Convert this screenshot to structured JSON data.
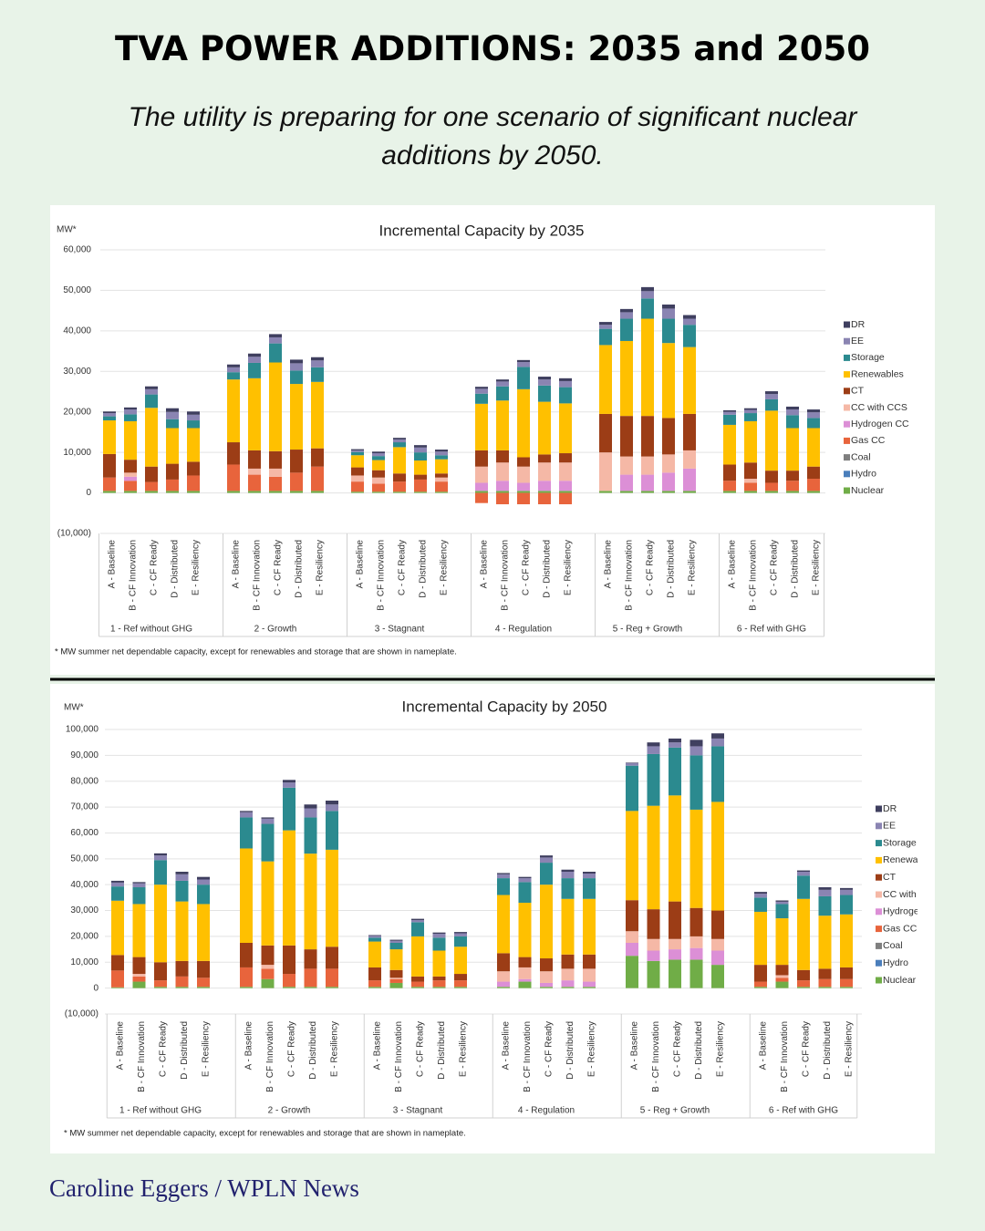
{
  "header": {
    "title": "TVA POWER ADDITIONS: 2035 and 2050",
    "subtitle": "The utility is preparing for one scenario of significant nuclear additions by 2050."
  },
  "credit": "Caroline Eggers / WPLN News",
  "chart_data": [
    {
      "type": "stacked-bar",
      "title": "Incremental Capacity by 2035",
      "y_label": "MW*",
      "note": "* MW summer net dependable capacity, except for renewables and storage that are shown in nameplate.",
      "categories": [
        "A - Baseline",
        "B - CF Innovation",
        "C - CF Ready",
        "D - Distributed",
        "E - Resiliency",
        "A - Baseline",
        "B - CF Innovation",
        "C - CF Ready",
        "D - Distributed",
        "E - Resiliency",
        "A - Baseline",
        "B - CF Innovation",
        "C - CF Ready",
        "D - Distributed",
        "E - Resiliency",
        "A - Baseline",
        "B - CF Innovation",
        "C - CF Ready",
        "D - Distributed",
        "E - Resiliency",
        "A - Baseline",
        "B - CF Innovation",
        "C - CF Ready",
        "D - Distributed",
        "E - Resiliency",
        "A - Baseline",
        "B - CF Innovation",
        "C - CF Ready",
        "D - Distributed",
        "E - Resiliency"
      ],
      "groups": [
        "1 - Ref without GHG",
        "2 - Growth",
        "3 - Stagnant",
        "4 - Regulation",
        "5 - Reg + Growth",
        "6 - Ref with GHG"
      ],
      "ylim": [
        -10000,
        60000
      ],
      "yticks": [
        {
          "value": -10000,
          "label": "(10,000)"
        },
        0,
        {
          "value": 10000,
          "label": "10,000"
        },
        {
          "value": 20000,
          "label": "20,000"
        },
        {
          "value": 30000,
          "label": "30,000"
        },
        {
          "value": 40000,
          "label": "40,000"
        },
        {
          "value": 50000,
          "label": "50,000"
        },
        {
          "value": 60000,
          "label": "60,000"
        }
      ],
      "grid": true,
      "legend": "right",
      "series": [
        {
          "name": "Nuclear",
          "color": "#70ad47",
          "values": [
            500,
            500,
            500,
            500,
            500,
            500,
            500,
            500,
            500,
            500,
            300,
            300,
            300,
            300,
            300,
            500,
            500,
            500,
            500,
            500,
            500,
            500,
            500,
            500,
            500,
            500,
            500,
            500,
            500,
            500
          ]
        },
        {
          "name": "Hydro",
          "color": "#4a7ebb",
          "values": [
            0,
            0,
            0,
            0,
            0,
            0,
            0,
            0,
            0,
            0,
            0,
            0,
            0,
            0,
            0,
            0,
            0,
            0,
            0,
            0,
            0,
            0,
            0,
            0,
            0,
            0,
            0,
            0,
            0,
            0
          ]
        },
        {
          "name": "Coal",
          "color": "#7f7f7f",
          "values": [
            0,
            0,
            0,
            0,
            0,
            0,
            0,
            0,
            0,
            0,
            0,
            0,
            0,
            0,
            0,
            0,
            0,
            0,
            0,
            0,
            0,
            0,
            0,
            0,
            0,
            0,
            0,
            0,
            0,
            0
          ]
        },
        {
          "name": "Gas CC",
          "color": "#e8643c",
          "values": [
            3300,
            2500,
            2200,
            2800,
            3800,
            6500,
            4000,
            3500,
            4500,
            6000,
            2500,
            2000,
            2500,
            3000,
            2500,
            -2500,
            -2800,
            -2800,
            -2800,
            -2800,
            0,
            0,
            0,
            0,
            0,
            2500,
            2000,
            2000,
            2500,
            3000
          ]
        },
        {
          "name": "Hydrogen CC",
          "color": "#dc8fd6",
          "values": [
            0,
            1000,
            0,
            0,
            0,
            0,
            0,
            0,
            0,
            0,
            0,
            0,
            0,
            0,
            0,
            2000,
            2500,
            2000,
            2500,
            2500,
            0,
            4000,
            4000,
            4500,
            5500,
            0,
            0,
            0,
            0,
            0
          ]
        },
        {
          "name": "CC with CCS",
          "color": "#f5b8a6",
          "values": [
            0,
            1000,
            0,
            0,
            0,
            0,
            1500,
            2000,
            0,
            0,
            1500,
            1500,
            0,
            0,
            1000,
            4000,
            4500,
            4000,
            4500,
            4500,
            9500,
            4500,
            4500,
            4500,
            4500,
            0,
            1000,
            0,
            0,
            0
          ]
        },
        {
          "name": "CT",
          "color": "#9c3d16",
          "values": [
            5800,
            3200,
            3800,
            3900,
            3400,
            5500,
            4500,
            4300,
            5700,
            4500,
            2000,
            1800,
            2000,
            1200,
            1000,
            4000,
            3000,
            2300,
            2000,
            2300,
            9500,
            10000,
            10000,
            9000,
            9000,
            4000,
            4000,
            3000,
            2500,
            3000
          ]
        },
        {
          "name": "Renewables",
          "color": "#ffc000",
          "values": [
            8300,
            9500,
            14500,
            8800,
            8300,
            15500,
            17800,
            21900,
            16200,
            16400,
            3000,
            2500,
            6500,
            3500,
            3500,
            11500,
            12300,
            16800,
            13000,
            12300,
            17000,
            18500,
            24000,
            18500,
            16500,
            9800,
            10200,
            14800,
            10500,
            9500
          ]
        },
        {
          "name": "Storage",
          "color": "#2b8a8f",
          "values": [
            1000,
            1700,
            3300,
            2200,
            1900,
            1800,
            3800,
            4700,
            3300,
            3600,
            800,
            1000,
            1200,
            2000,
            1000,
            2500,
            3500,
            5500,
            4000,
            4000,
            4000,
            5500,
            5000,
            6000,
            5500,
            2500,
            2000,
            2800,
            3200,
            2500
          ]
        },
        {
          "name": "EE",
          "color": "#8a84b2",
          "values": [
            800,
            1200,
            1300,
            1800,
            1400,
            1200,
            1500,
            1500,
            1800,
            1700,
            400,
            700,
            700,
            1200,
            900,
            1200,
            1200,
            1200,
            1500,
            1500,
            1000,
            1600,
            1800,
            2500,
            1500,
            700,
            800,
            1300,
            1400,
            1400
          ]
        },
        {
          "name": "DR",
          "color": "#3f3f5f",
          "values": [
            400,
            500,
            700,
            900,
            800,
            700,
            800,
            800,
            900,
            800,
            300,
            400,
            400,
            600,
            500,
            500,
            500,
            500,
            700,
            700,
            700,
            800,
            1000,
            1000,
            900,
            400,
            400,
            700,
            700,
            700
          ]
        }
      ]
    },
    {
      "type": "stacked-bar",
      "title": "Incremental Capacity by 2050",
      "y_label": "MW*",
      "note": "* MW summer net dependable capacity, except for renewables and storage that are shown in nameplate.",
      "categories": [
        "A - Baseline",
        "B - CF Innovation",
        "C - CF Ready",
        "D - Distributed",
        "E - Resiliency",
        "A - Baseline",
        "B - CF Innovation",
        "C - CF Ready",
        "D - Distributed",
        "E - Resiliency",
        "A - Baseline",
        "B - CF Innovation",
        "C - CF Ready",
        "D - Distributed",
        "E - Resiliency",
        "A - Baseline",
        "B - CF Innovation",
        "C - CF Ready",
        "D - Distributed",
        "E - Resiliency",
        "A - Baseline",
        "B - CF Innovation",
        "C - CF Ready",
        "D - Distributed",
        "E - Resiliency",
        "A - Baseline",
        "B - CF Innovation",
        "C - CF Ready",
        "D - Distributed",
        "E - Resiliency"
      ],
      "groups": [
        "1 - Ref without GHG",
        "2 - Growth",
        "3 - Stagnant",
        "4 - Regulation",
        "5 - Reg + Growth",
        "6 - Ref with GHG"
      ],
      "ylim": [
        -10000,
        100000
      ],
      "yticks": [
        {
          "value": -10000,
          "label": "(10,000)"
        },
        0,
        {
          "value": 10000,
          "label": "10,000"
        },
        {
          "value": 20000,
          "label": "20,000"
        },
        {
          "value": 30000,
          "label": "30,000"
        },
        {
          "value": 40000,
          "label": "40,000"
        },
        {
          "value": 50000,
          "label": "50,000"
        },
        {
          "value": 60000,
          "label": "60,000"
        },
        {
          "value": 70000,
          "label": "70,000"
        },
        {
          "value": 80000,
          "label": "80,000"
        },
        {
          "value": 90000,
          "label": "90,000"
        },
        {
          "value": 100000,
          "label": "100,000"
        }
      ],
      "grid": true,
      "legend": "right",
      "series": [
        {
          "name": "Nuclear",
          "color": "#70ad47",
          "values": [
            300,
            2500,
            500,
            500,
            500,
            500,
            3500,
            500,
            500,
            500,
            500,
            2000,
            500,
            500,
            500,
            500,
            2500,
            500,
            500,
            500,
            12500,
            10500,
            11000,
            11000,
            9000,
            500,
            2500,
            500,
            500,
            500
          ]
        },
        {
          "name": "Hydro",
          "color": "#4a7ebb",
          "values": [
            0,
            0,
            0,
            0,
            0,
            0,
            0,
            0,
            0,
            0,
            0,
            0,
            0,
            0,
            0,
            0,
            0,
            0,
            0,
            0,
            0,
            0,
            0,
            0,
            0,
            0,
            0,
            0,
            0,
            0
          ]
        },
        {
          "name": "Coal",
          "color": "#7f7f7f",
          "values": [
            0,
            0,
            0,
            0,
            0,
            0,
            0,
            0,
            0,
            0,
            0,
            0,
            0,
            0,
            0,
            0,
            0,
            0,
            0,
            0,
            0,
            0,
            0,
            0,
            0,
            0,
            0,
            0,
            0,
            0
          ]
        },
        {
          "name": "Gas CC",
          "color": "#e8643c",
          "values": [
            6500,
            2000,
            2500,
            4000,
            3500,
            7500,
            4000,
            5000,
            7000,
            7000,
            2500,
            1500,
            2000,
            2500,
            2500,
            0,
            0,
            0,
            0,
            0,
            0,
            0,
            0,
            0,
            0,
            2000,
            1500,
            2500,
            3000,
            3000
          ]
        },
        {
          "name": "Hydrogen CC",
          "color": "#dc8fd6",
          "values": [
            0,
            0,
            0,
            0,
            0,
            0,
            0,
            0,
            0,
            0,
            0,
            0,
            0,
            0,
            0,
            2000,
            1000,
            1500,
            2500,
            2000,
            5000,
            4000,
            4000,
            4500,
            5500,
            0,
            0,
            0,
            0,
            0
          ]
        },
        {
          "name": "CC with CCS",
          "color": "#f5b8a6",
          "values": [
            0,
            1000,
            0,
            0,
            0,
            0,
            1500,
            0,
            0,
            0,
            0,
            500,
            0,
            0,
            0,
            4000,
            4500,
            4500,
            4500,
            5000,
            4500,
            4500,
            4000,
            4500,
            4500,
            0,
            1000,
            0,
            0,
            0
          ]
        },
        {
          "name": "CT",
          "color": "#9c3d16",
          "values": [
            6000,
            6500,
            7000,
            6000,
            6500,
            9500,
            7500,
            11000,
            7500,
            8500,
            5000,
            3000,
            2000,
            1500,
            2500,
            7000,
            4000,
            5000,
            5500,
            5500,
            12000,
            11500,
            14500,
            11000,
            11000,
            6500,
            4000,
            4000,
            4000,
            4500
          ]
        },
        {
          "name": "Renewables",
          "color": "#ffc000",
          "values": [
            21000,
            20500,
            30000,
            23000,
            22000,
            36500,
            32500,
            44500,
            37000,
            37500,
            10000,
            8000,
            15500,
            10000,
            10500,
            22500,
            21000,
            28500,
            21500,
            21500,
            34500,
            40000,
            41000,
            38000,
            42000,
            20500,
            18000,
            27500,
            20500,
            20500
          ]
        },
        {
          "name": "Storage",
          "color": "#2b8a8f",
          "values": [
            5500,
            6500,
            9500,
            8000,
            7500,
            12000,
            14500,
            16500,
            14000,
            15000,
            1500,
            2500,
            5500,
            5000,
            4000,
            6500,
            8000,
            8500,
            8000,
            8000,
            17500,
            20000,
            18500,
            21000,
            21500,
            5500,
            5500,
            9000,
            7500,
            7500
          ]
        },
        {
          "name": "EE",
          "color": "#8a84b2",
          "values": [
            1500,
            1500,
            1800,
            2500,
            2000,
            2000,
            2000,
            2000,
            3500,
            2500,
            700,
            800,
            800,
            1500,
            1200,
            1500,
            1500,
            2000,
            2500,
            1800,
            1000,
            3000,
            2000,
            3500,
            3000,
            1500,
            900,
            1500,
            2500,
            2000
          ]
        },
        {
          "name": "DR",
          "color": "#3f3f5f",
          "values": [
            700,
            500,
            800,
            1000,
            1000,
            500,
            500,
            1000,
            1500,
            1500,
            300,
            400,
            500,
            500,
            500,
            500,
            500,
            800,
            800,
            700,
            200,
            1500,
            1500,
            2500,
            2000,
            700,
            500,
            500,
            1000,
            700
          ]
        }
      ]
    }
  ]
}
